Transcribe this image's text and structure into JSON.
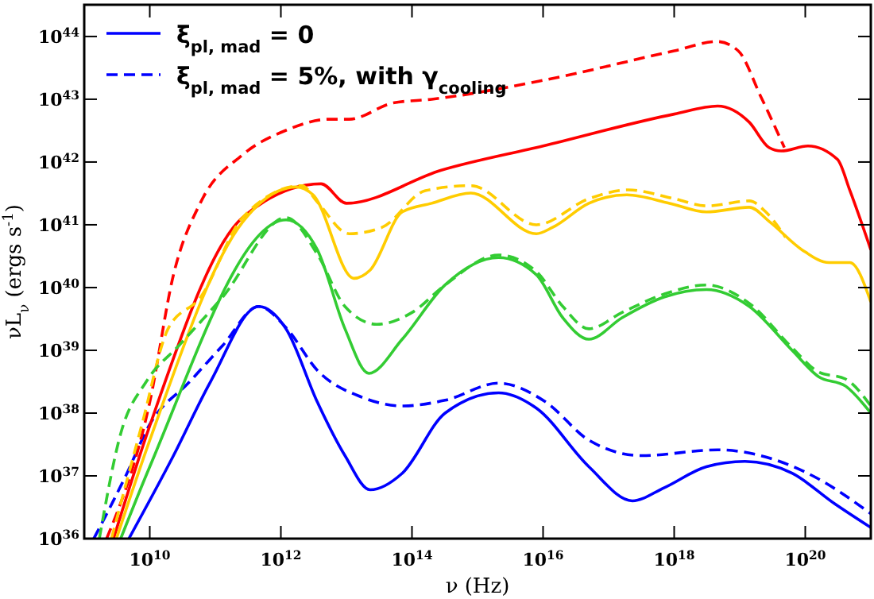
{
  "chart_data": {
    "type": "line",
    "xlabel": "ν (Hz)",
    "ylabel": "νL$_{ν}$ (ergs s$^{-1}$)",
    "log": "xy",
    "legend": "top left",
    "grid": false,
    "xlim": [
      1000000000.0,
      1e+21
    ],
    "ylim": [
      1e+36,
      3.2e+44
    ],
    "xticks": [
      {
        "value": 10000000000.0,
        "label": "10$^{10}$"
      },
      {
        "value": 1000000000000.0,
        "label": "10$^{12}$"
      },
      {
        "value": 100000000000000.0,
        "label": "10$^{14}$"
      },
      {
        "value": 1e+16,
        "label": "10$^{16}$"
      },
      {
        "value": 1e+18,
        "label": "10$^{18}$"
      },
      {
        "value": 1e+20,
        "label": "10$^{20}$"
      }
    ],
    "yticks": [
      {
        "value": 1e+36,
        "label": "10$^{36}$"
      },
      {
        "value": 1e+37,
        "label": "10$^{37}$"
      },
      {
        "value": 1e+38,
        "label": "10$^{38}$"
      },
      {
        "value": 1e+39,
        "label": "10$^{39}$"
      },
      {
        "value": 1e+40,
        "label": "10$^{40}$"
      },
      {
        "value": 1e+41,
        "label": "10$^{41}$"
      },
      {
        "value": 1e+42,
        "label": "10$^{42}$"
      },
      {
        "value": 1e+43,
        "label": "10$^{43}$"
      },
      {
        "value": 1e+44,
        "label": "10$^{44}$"
      }
    ],
    "series": [
      {
        "name": "ξ$_{pl, mad}$ = 0",
        "color": "#0000ff",
        "line_style": "solid",
        "x": [
          4800000000.0,
          23000000000.0,
          85000000000.0,
          460000000000.0,
          1200000000000.0,
          3600000000000.0,
          9500000000000.0,
          23000000000000.0,
          71000000000000.0,
          320000000000000.0,
          2100000000000000.0,
          7900000000000000.0,
          5e+16,
          2.3e+17,
          7.1e+17,
          3.1e+18,
          1.2e+19,
          6.3e+19,
          2.8e+20,
          1e+21
        ],
        "values": [
          1e+36,
          2.1e+37,
          3.2e+38,
          5e+39,
          2.2e+39,
          1.5e+38,
          2.1e+37,
          6e+36,
          1.1e+37,
          1e+38,
          2.1e+38,
          1.2e+38,
          1.4e+37,
          4e+36,
          6.5e+36,
          1.4e+37,
          1.7e+37,
          1.1e+37,
          3.6e+36,
          1.5e+36
        ]
      },
      {
        "name": "ξ$_{pl, mad}$ = 5%, with γ$_{cooling}$",
        "color": "#0000ff",
        "line_style": "dashed",
        "x": [
          1400000000.0,
          4300000000.0,
          10000000000.0,
          41000000000.0,
          130000000000.0,
          460000000000.0,
          1200000000000.0,
          3600000000000.0,
          17000000000000.0,
          71000000000000.0,
          320000000000000.0,
          2100000000000000.0,
          1.1e+16,
          5e+16,
          3.2e+17,
          4.6e+18,
          2.1e+19,
          1.3e+20,
          1e+21
        ],
        "values": [
          1e+36,
          1e+37,
          6.6e+37,
          3.2e+38,
          1.2e+39,
          5e+39,
          2.3e+39,
          4.8e+38,
          1.8e+38,
          1.3e+38,
          1.6e+38,
          3e+38,
          1.5e+38,
          3.7e+37,
          2.1e+37,
          2.6e+37,
          2.1e+37,
          1e+37,
          2.5e+36
        ]
      },
      {
        "color": "#ff0000",
        "line_style": "solid",
        "x": [
          2800000000.0,
          10000000000.0,
          260000000000.0,
          4100000000000.0,
          10000000000000.0,
          280000000000000.0,
          1e+16,
          1e+18,
          4.6e+18,
          1.4e+19,
          2.8e+19,
          4.3e+19,
          1.1e+20,
          3.1e+20,
          4.8e+20,
          1e+21
        ],
        "values": [
          1e+36,
          6.3e+37,
          1.3e+41,
          4.5e+41,
          2.2e+41,
          7.4e+41,
          1.8e+42,
          5.8e+42,
          7.8e+42,
          4.3e+42,
          1.7e+42,
          1.5e+42,
          1.8e+42,
          1.1e+42,
          3.5e+41,
          4e+40
        ]
      },
      {
        "color": "#ff0000",
        "line_style": "dashed",
        "x": [
          2200000000.0,
          10000000000.0,
          23000000000.0,
          60000000000.0,
          260000000000.0,
          1200000000000.0,
          5400000000000.0,
          11000000000000.0,
          51000000000000.0,
          200000000000000.0,
          1e+16,
          1e+18,
          4.6e+18,
          9.5e+18,
          2.1e+19,
          4.8e+19
        ],
        "values": [
          1e+36,
          1.5e+38,
          1.6e+40,
          2.3e+41,
          1.3e+42,
          3.2e+42,
          4.8e+42,
          4.8e+42,
          8.7e+42,
          1e+43,
          2e+43,
          5.9e+43,
          8.3e+43,
          5.9e+43,
          1.1e+43,
          1.7e+42
        ]
      },
      {
        "color": "#ffcc00",
        "line_style": "solid",
        "x": [
          3100000000.0,
          10000000000.0,
          260000000000.0,
          1700000000000.0,
          3100000000000.0,
          13000000000000.0,
          23000000000000.0,
          71000000000000.0,
          200000000000000.0,
          790000000000000.0,
          7900000000000000.0,
          1.4e+16,
          5e+16,
          1.9e+17,
          8.5e+17,
          3.1e+18,
          1.4e+19,
          2.9e+19,
          8.9e+19,
          2.3e+20,
          4.8e+20,
          1e+21
        ],
        "values": [
          1e+36,
          3.7e+37,
          1.1e+41,
          4e+41,
          3e+41,
          1.4e+40,
          1.9e+40,
          1.6e+41,
          2.2e+41,
          3.2e+41,
          7.2e+40,
          9.1e+40,
          2.2e+41,
          3e+41,
          2.2e+41,
          1.6e+41,
          1.9e+41,
          1.1e+41,
          4e+40,
          2.5e+40,
          2.5e+40,
          5.9e+39
        ]
      },
      {
        "color": "#ffcc00",
        "line_style": "dashed",
        "x": [
          2600000000.0,
          7600000000.0,
          19000000000.0,
          60000000000.0,
          260000000000.0,
          2100000000000.0,
          3600000000000.0,
          11000000000000.0,
          35000000000000.0,
          160000000000000.0,
          790000000000000.0,
          7900000000000000.0,
          5e+16,
          2e+17,
          1e+18,
          3.2e+18,
          1.4e+19,
          2.5e+19,
          5e+19
        ],
        "values": [
          1e+36,
          6.6e+37,
          2.2e+39,
          7.1e+39,
          1.3e+41,
          4.2e+41,
          2.3e+41,
          7.2e+40,
          9.1e+40,
          3.5e+41,
          4.2e+41,
          1e+41,
          2.6e+41,
          3.6e+41,
          2.6e+41,
          2e+41,
          2.4e+41,
          1.6e+41,
          6.3e+40
        ]
      },
      {
        "color": "#33cc33",
        "line_style": "solid",
        "x": [
          3600000000.0,
          10000000000.0,
          1200000000000.0,
          3600000000000.0,
          9500000000000.0,
          22000000000000.0,
          71000000000000.0,
          320000000000000.0,
          2100000000000000.0,
          7900000000000000.0,
          2e+16,
          5e+16,
          1.6e+17,
          7.1e+17,
          3.1e+18,
          1.4e+19,
          6.3e+19,
          1.6e+20,
          4.1e+20,
          1e+21
        ],
        "values": [
          1e+36,
          1.4e+37,
          1.2e+41,
          4e+40,
          2.2e+39,
          4.3e+38,
          1.5e+39,
          1.1e+40,
          3e+40,
          1.6e+40,
          3.3e+39,
          1.5e+39,
          3.3e+39,
          7.1e+39,
          9.3e+39,
          5e+39,
          1e+39,
          3.8e+38,
          2.7e+38,
          1e+38
        ]
      },
      {
        "color": "#33cc33",
        "line_style": "dashed",
        "x": [
          1700000000.0,
          3600000000.0,
          8900000000.0,
          28000000000.0,
          130000000000.0,
          1200000000000.0,
          3600000000000.0,
          9500000000000.0,
          29000000000000.0,
          100000000000000.0,
          320000000000000.0,
          2100000000000000.0,
          7900000000000000.0,
          2e+16,
          5e+16,
          1.6e+17,
          7.1e+17,
          3.1e+18,
          1.4e+19,
          6.3e+19,
          1.6e+20,
          4.1e+20,
          1e+21
        ],
        "values": [
          1e+36,
          4.7e+37,
          3.2e+38,
          1.2e+39,
          7.1e+39,
          1.3e+41,
          3.4e+40,
          5e+39,
          2.6e+39,
          4e+39,
          1.1e+40,
          3.3e+40,
          1.8e+40,
          5e+39,
          2.2e+39,
          4e+39,
          7.9e+39,
          1.1e+40,
          5.6e+39,
          1.1e+39,
          4.5e+38,
          3.5e+38,
          1.3e+38
        ]
      }
    ]
  }
}
